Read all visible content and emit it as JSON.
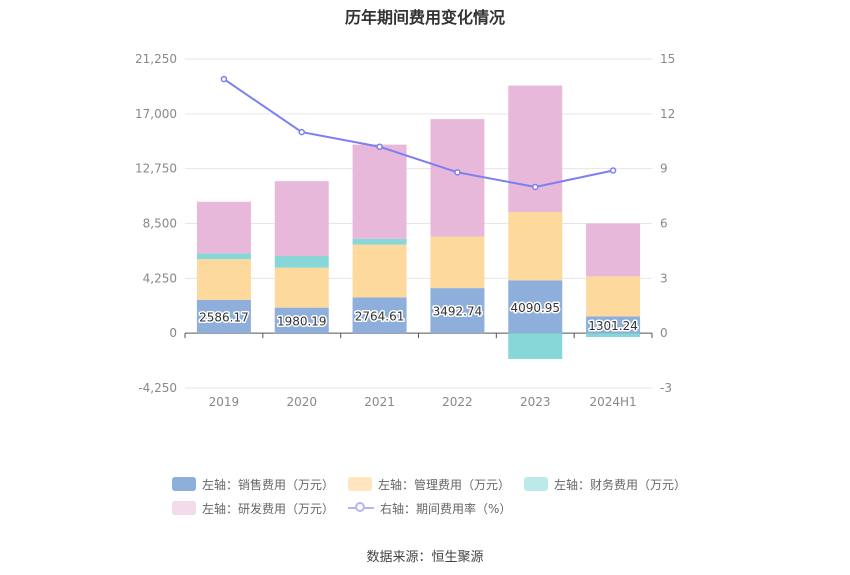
{
  "title": "历年期间费用变化情况",
  "source": "数据来源：恒生聚源",
  "colors": {
    "sales": "#8eaedc",
    "admin": "#fdd99d",
    "finance": "#87d6d8",
    "rd": "#e8b8da",
    "rate": "#7b7ff0"
  },
  "legend": [
    {
      "key": "sales",
      "label": "左轴：销售费用（万元）"
    },
    {
      "key": "admin",
      "label": "左轴：管理费用（万元）"
    },
    {
      "key": "finance",
      "label": "左轴：财务费用（万元）"
    },
    {
      "key": "rd",
      "label": "左轴：研发费用（万元）"
    },
    {
      "key": "rate",
      "label": "右轴：期间费用率（%）"
    }
  ],
  "chart_data": {
    "type": "bar",
    "categories": [
      "2019",
      "2020",
      "2021",
      "2022",
      "2023",
      "2024H1"
    ],
    "series": [
      {
        "name": "左轴：销售费用（万元）",
        "key": "sales",
        "axis": "left",
        "values": [
          2586.17,
          1980.19,
          2764.61,
          3492.74,
          4090.95,
          1301.24
        ]
      },
      {
        "name": "左轴：管理费用（万元）",
        "key": "admin",
        "axis": "left",
        "values": [
          3150,
          3100,
          4100,
          4000,
          5300,
          3100
        ]
      },
      {
        "name": "左轴：财务费用（万元）",
        "key": "finance",
        "axis": "left",
        "values": [
          450,
          900,
          450,
          0,
          -2000,
          -300
        ]
      },
      {
        "name": "左轴：研发费用（万元）",
        "key": "rd",
        "axis": "left",
        "values": [
          4000,
          5800,
          7300,
          9100,
          9800,
          4100
        ]
      },
      {
        "name": "右轴：期间费用率（%）",
        "key": "rate",
        "axis": "right",
        "type": "line",
        "values": [
          13.9,
          11.0,
          10.2,
          8.8,
          8.0,
          8.9
        ]
      }
    ],
    "data_labels": [
      "2586.17",
      "1980.19",
      "2764.61",
      "3492.74",
      "4090.95",
      "1301.24"
    ],
    "y_left": {
      "min": -4250,
      "max": 21250,
      "ticks": [
        -4250,
        0,
        4250,
        8500,
        12750,
        17000,
        21250
      ],
      "tick_labels": [
        "-4,250",
        "0",
        "4,250",
        "8,500",
        "12,750",
        "17,000",
        "21,250"
      ]
    },
    "y_right": {
      "min": -3,
      "max": 15,
      "ticks": [
        -3,
        0,
        3,
        6,
        9,
        12,
        15
      ],
      "tick_labels": [
        "-3",
        "0",
        "3",
        "6",
        "9",
        "12",
        "15"
      ]
    },
    "grid": true,
    "legend_position": "bottom"
  }
}
